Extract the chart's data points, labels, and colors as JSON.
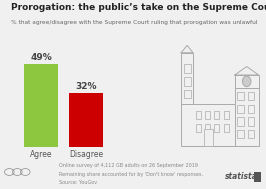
{
  "title": "Prorogation: the public’s take on the Supreme Court ruling",
  "subtitle": "% that agree/disagree with the Supreme Court ruling that prorogation was unlawful",
  "categories": [
    "Agree",
    "Disagree"
  ],
  "values": [
    49,
    32
  ],
  "bar_colors": [
    "#8dc63f",
    "#cc0000"
  ],
  "footnote1": "Online survey of 4,112 GB adults on 26 September 2019",
  "footnote2": "Remaining share accounted for by 'Don't know' responses.",
  "footnote3": "Source: YouGov",
  "bg_color": "#f0f0f0",
  "title_fontsize": 6.5,
  "subtitle_fontsize": 4.2,
  "bar_label_fontsize": 6.5,
  "xticklabel_fontsize": 5.5,
  "footnote_fontsize": 3.5,
  "statista_fontsize": 5.5,
  "ylim": [
    0,
    58
  ],
  "bar_positions": [
    0.25,
    0.62
  ],
  "bar_width": 0.28,
  "xlim": [
    0.0,
    1.35
  ]
}
